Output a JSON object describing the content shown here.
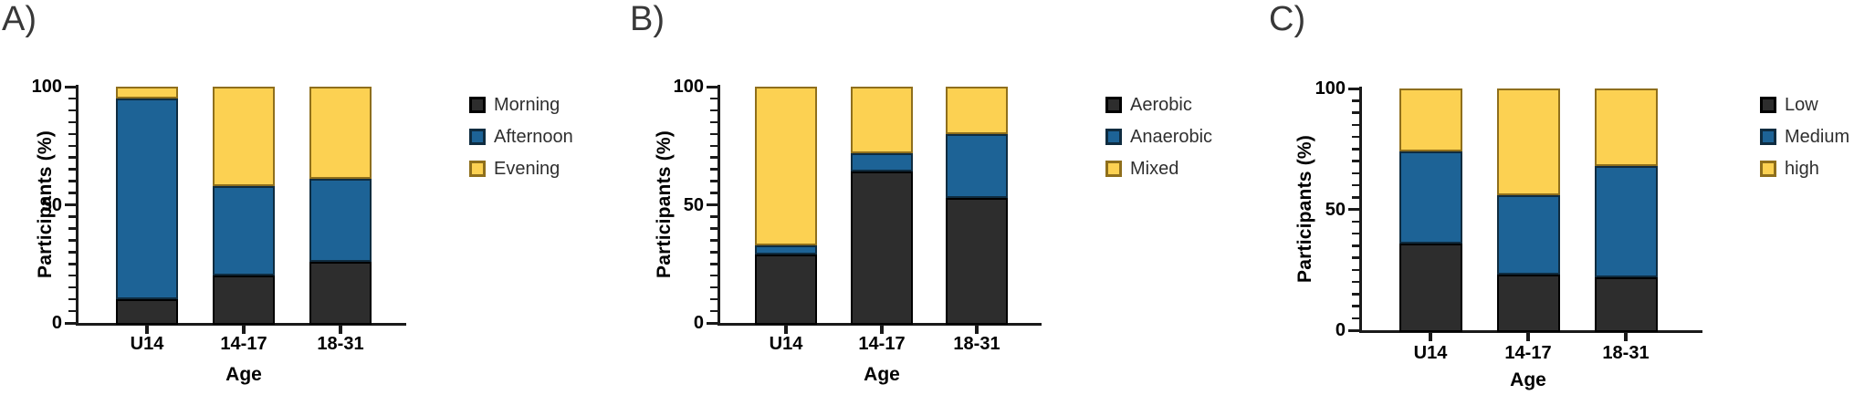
{
  "palette": {
    "dark": "#2d2d2d",
    "blue": "#1d6396",
    "yellow": "#fcd152",
    "dark_border": "#000000",
    "blue_border": "#0f2c40",
    "yellow_border": "#8f6f1c",
    "axis": "#1a1a1a",
    "legend_text": "#2f2f2f"
  },
  "chart_data": [
    {
      "type": "bar",
      "stacked": true,
      "panel_label": "A)",
      "title": "",
      "ylabel": "Participants (%)",
      "xlabel": "Age",
      "ylim": [
        0,
        100
      ],
      "grid": false,
      "legend_position": "right",
      "yticks_major": [
        0,
        50,
        100
      ],
      "ytick_labels": [
        "0",
        "50",
        "100"
      ],
      "minor_tick_step": 5,
      "categories": [
        "U14",
        "14-17",
        "18-31"
      ],
      "series": [
        {
          "name": "Morning",
          "color_key": "dark",
          "values": [
            10,
            20,
            26
          ]
        },
        {
          "name": "Afternoon",
          "color_key": "blue",
          "values": [
            85,
            38,
            35
          ]
        },
        {
          "name": "Evening",
          "color_key": "yellow",
          "values": [
            5,
            42,
            39
          ]
        }
      ]
    },
    {
      "type": "bar",
      "stacked": true,
      "panel_label": "B)",
      "title": "",
      "ylabel": "Participants (%)",
      "xlabel": "Age",
      "ylim": [
        0,
        100
      ],
      "grid": false,
      "legend_position": "right",
      "yticks_major": [
        0,
        50,
        100
      ],
      "ytick_labels": [
        "0",
        "50",
        "100"
      ],
      "minor_tick_step": 5,
      "categories": [
        "U14",
        "14-17",
        "18-31"
      ],
      "series": [
        {
          "name": "Aerobic",
          "color_key": "dark",
          "values": [
            29,
            64,
            53
          ]
        },
        {
          "name": "Anaerobic",
          "color_key": "blue",
          "values": [
            4,
            8,
            27
          ]
        },
        {
          "name": "Mixed",
          "color_key": "yellow",
          "values": [
            67,
            28,
            20
          ]
        }
      ]
    },
    {
      "type": "bar",
      "stacked": true,
      "panel_label": "C)",
      "title": "",
      "ylabel": "Participants (%)",
      "xlabel": "Age",
      "ylim": [
        0,
        100
      ],
      "grid": false,
      "legend_position": "right",
      "yticks_major": [
        0,
        50,
        100
      ],
      "ytick_labels": [
        "0",
        "50",
        "100"
      ],
      "minor_tick_step": 5,
      "categories": [
        "U14",
        "14-17",
        "18-31"
      ],
      "series": [
        {
          "name": "Low",
          "color_key": "dark",
          "values": [
            36,
            23,
            22
          ]
        },
        {
          "name": "Medium",
          "color_key": "blue",
          "values": [
            38,
            33,
            46
          ]
        },
        {
          "name": "high",
          "color_key": "yellow",
          "values": [
            26,
            44,
            32
          ]
        }
      ]
    }
  ]
}
